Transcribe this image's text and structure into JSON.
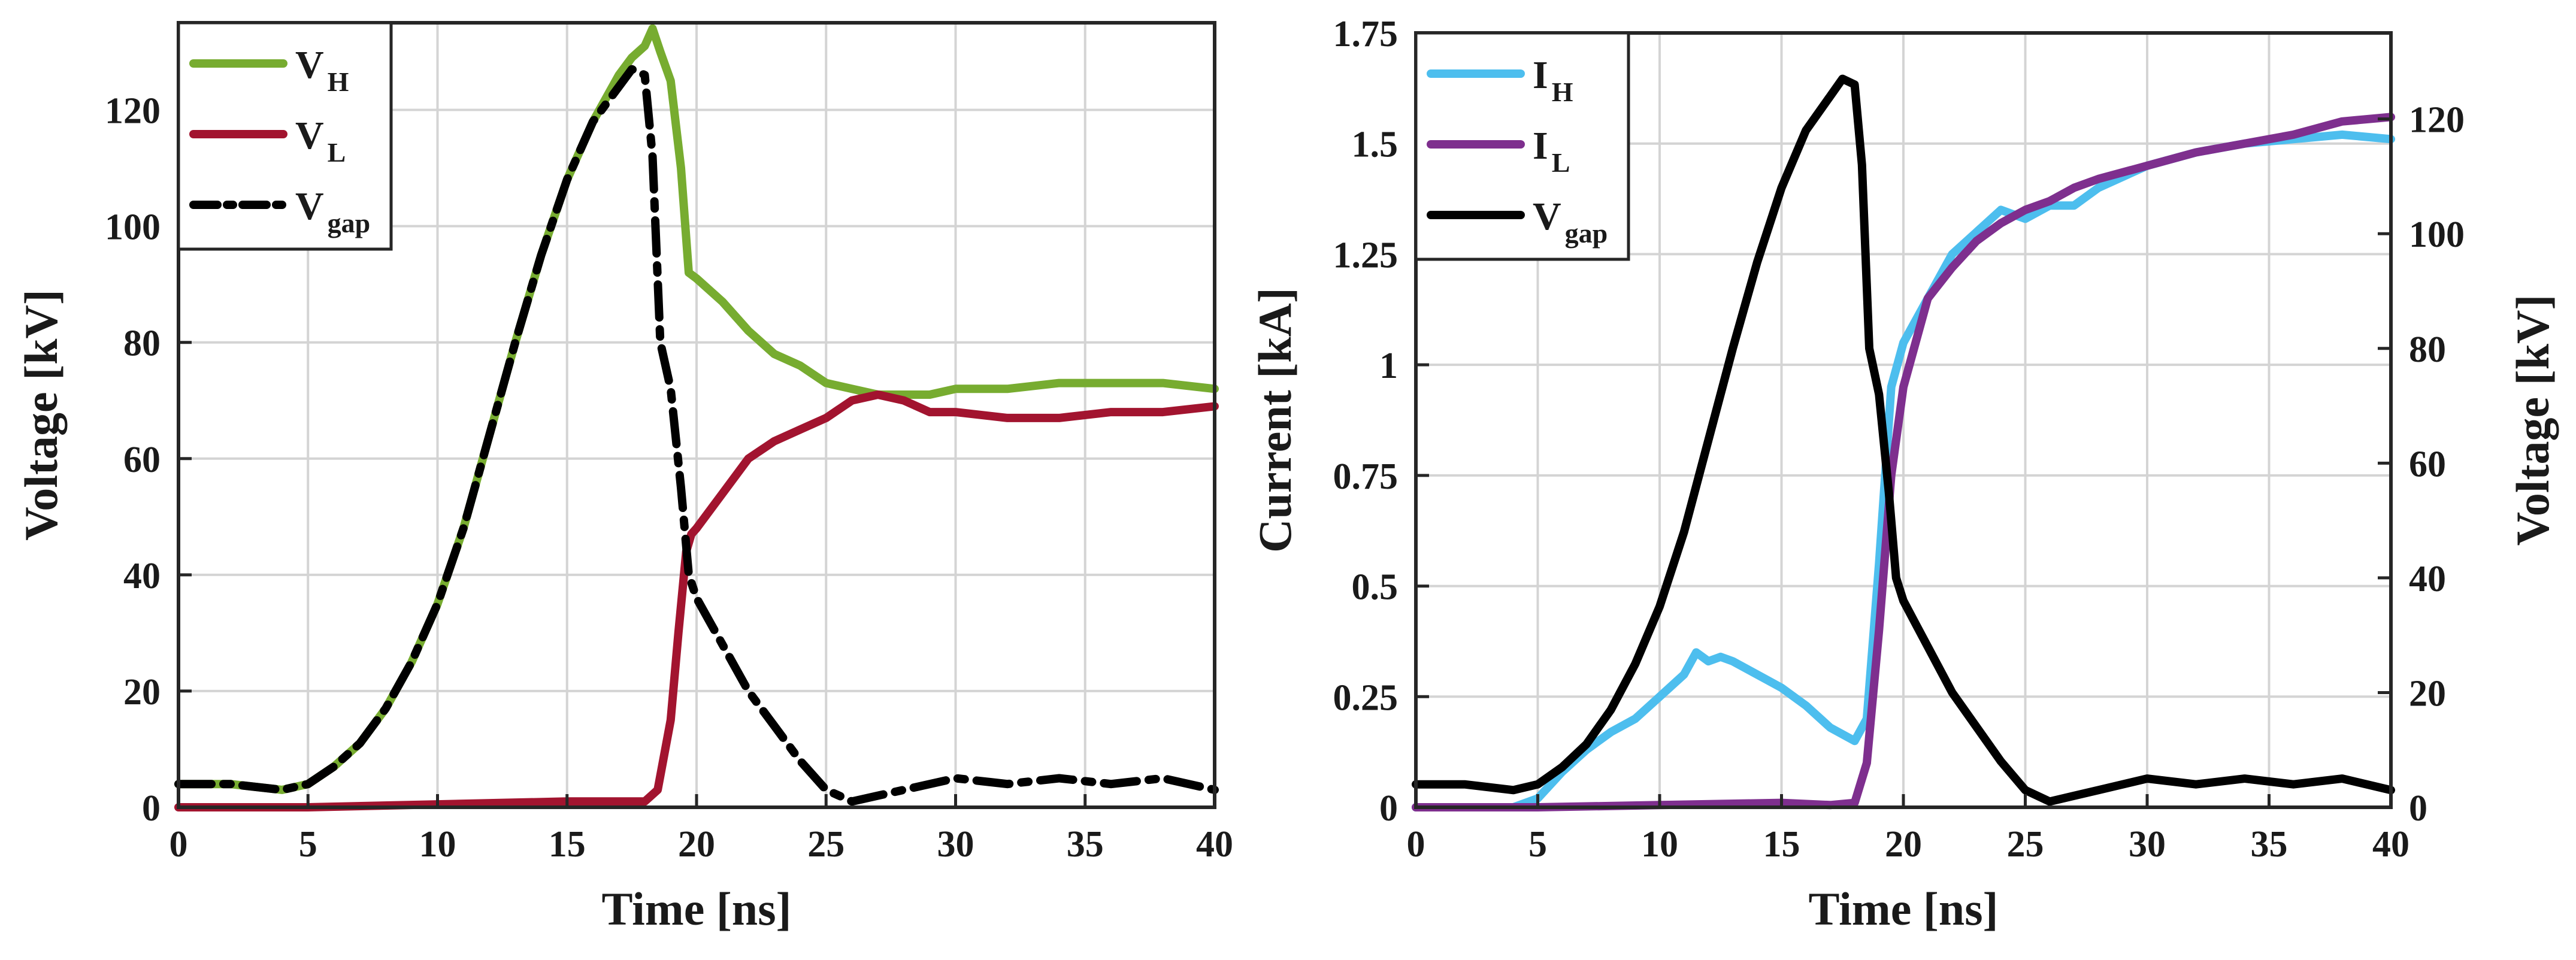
{
  "colors": {
    "green": "#77ac30",
    "red": "#a2142f",
    "black": "#000000",
    "cyan": "#4dbeee",
    "purple": "#7e2f8e"
  },
  "chart_data": [
    {
      "type": "line",
      "id": "left",
      "xlabel": "Time [ns]",
      "ylabel": "Voltage [kV]",
      "xlim": [
        0,
        40
      ],
      "ylim": [
        0,
        135
      ],
      "xticks": [
        0,
        5,
        10,
        15,
        20,
        25,
        30,
        35,
        40
      ],
      "xtick_labels": [
        "0",
        "5",
        "10",
        "15",
        "20",
        "25",
        "30",
        "35",
        "40"
      ],
      "yticks": [
        0,
        20,
        40,
        60,
        80,
        100,
        120
      ],
      "ytick_labels": [
        "0",
        "20",
        "40",
        "60",
        "80",
        "100",
        "120"
      ],
      "grid": true,
      "legend_position": "top-left",
      "series": [
        {
          "name": "V_H",
          "label_main": "V",
          "label_sub": "H",
          "color": "#77ac30",
          "dash": "solid",
          "x": [
            0,
            2,
            4,
            5,
            6,
            7,
            8,
            9,
            10,
            11,
            12,
            13,
            14,
            15,
            16,
            17,
            17.5,
            18,
            18.3,
            18.6,
            19,
            19.4,
            19.7,
            20,
            21,
            22,
            23,
            24,
            25,
            26,
            27,
            28,
            29,
            30,
            32,
            34,
            36,
            38,
            40
          ],
          "y": [
            4,
            4,
            3,
            4,
            7,
            11,
            17,
            25,
            35,
            48,
            64,
            80,
            95,
            108,
            118,
            126,
            129,
            131,
            134,
            130,
            125,
            110,
            92,
            91,
            87,
            82,
            78,
            76,
            73,
            72,
            71,
            71,
            71,
            72,
            72,
            73,
            73,
            73,
            72
          ]
        },
        {
          "name": "V_L",
          "label_main": "V",
          "label_sub": "L",
          "color": "#a2142f",
          "dash": "solid",
          "x": [
            0,
            5,
            10,
            15,
            17,
            18,
            18.5,
            19,
            19.3,
            19.6,
            19.8,
            20,
            21,
            22,
            23,
            24,
            25,
            26,
            27,
            28,
            29,
            30,
            32,
            34,
            36,
            38,
            40
          ],
          "y": [
            0,
            0,
            0.5,
            1,
            1,
            1,
            3,
            15,
            30,
            44,
            47,
            48,
            54,
            60,
            63,
            65,
            67,
            70,
            71,
            70,
            68,
            68,
            67,
            67,
            68,
            68,
            69
          ]
        },
        {
          "name": "V_gap",
          "label_main": "V",
          "label_sub": "gap",
          "color": "#000000",
          "dash": "dashdot",
          "x": [
            0,
            2,
            4,
            5,
            6,
            7,
            8,
            9,
            10,
            11,
            12,
            13,
            14,
            15,
            16,
            17,
            17.5,
            18,
            18.3,
            18.6,
            19,
            19.4,
            19.7,
            20,
            20.5,
            21,
            22,
            23,
            24,
            25,
            26,
            27,
            28,
            30,
            32,
            34,
            36,
            38,
            40
          ],
          "y": [
            4,
            4,
            3,
            4,
            7,
            11,
            17,
            25,
            35,
            48,
            64,
            80,
            95,
            108,
            118,
            124,
            127,
            126,
            112,
            80,
            72,
            55,
            40,
            36,
            32,
            28,
            20,
            14,
            8,
            3,
            1,
            2,
            3,
            5,
            4,
            5,
            4,
            5,
            3
          ]
        }
      ]
    },
    {
      "type": "line",
      "id": "right",
      "xlabel": "Time [ns]",
      "ylabel_left": "Current [kA]",
      "ylabel_right": "Voltage [kV]",
      "xlim": [
        0,
        40
      ],
      "ylim_left": [
        0,
        1.75
      ],
      "ylim_right": [
        0,
        135
      ],
      "xticks": [
        0,
        5,
        10,
        15,
        20,
        25,
        30,
        35,
        40
      ],
      "xtick_labels": [
        "0",
        "5",
        "10",
        "15",
        "20",
        "25",
        "30",
        "35",
        "40"
      ],
      "yticks_left": [
        0,
        0.25,
        0.5,
        0.75,
        1,
        1.25,
        1.5,
        1.75
      ],
      "ytick_labels_left": [
        "0",
        "0.25",
        "0.5",
        "0.75",
        "1",
        "1.25",
        "1.5",
        "1.75"
      ],
      "yticks_right": [
        0,
        20,
        40,
        60,
        80,
        100,
        120
      ],
      "ytick_labels_right": [
        "0",
        "20",
        "40",
        "60",
        "80",
        "100",
        "120"
      ],
      "grid": true,
      "legend_position": "top-left",
      "series": [
        {
          "name": "I_H",
          "label_main": "I",
          "label_sub": "H",
          "color": "#4dbeee",
          "dash": "solid",
          "axis": "left",
          "x": [
            0,
            4,
            5,
            6,
            7,
            8,
            9,
            10,
            11,
            11.5,
            12,
            12.5,
            13,
            14,
            15,
            16,
            17,
            18,
            18.5,
            19,
            19.5,
            20,
            21,
            22,
            23,
            24,
            25,
            26,
            27,
            28,
            30,
            32,
            34,
            36,
            38,
            40
          ],
          "y": [
            0,
            0,
            0.02,
            0.08,
            0.13,
            0.17,
            0.2,
            0.25,
            0.3,
            0.35,
            0.33,
            0.34,
            0.33,
            0.3,
            0.27,
            0.23,
            0.18,
            0.15,
            0.2,
            0.55,
            0.95,
            1.05,
            1.15,
            1.25,
            1.3,
            1.35,
            1.33,
            1.36,
            1.36,
            1.4,
            1.45,
            1.48,
            1.5,
            1.51,
            1.52,
            1.51
          ]
        },
        {
          "name": "I_L",
          "label_main": "I",
          "label_sub": "L",
          "color": "#7e2f8e",
          "dash": "solid",
          "axis": "left",
          "x": [
            0,
            5,
            10,
            15,
            17,
            18,
            18.5,
            19,
            19.5,
            20,
            21,
            22,
            23,
            24,
            25,
            26,
            27,
            28,
            30,
            32,
            34,
            36,
            38,
            40
          ],
          "y": [
            0,
            0,
            0.005,
            0.01,
            0.005,
            0.01,
            0.1,
            0.4,
            0.75,
            0.95,
            1.15,
            1.22,
            1.28,
            1.32,
            1.35,
            1.37,
            1.4,
            1.42,
            1.45,
            1.48,
            1.5,
            1.52,
            1.55,
            1.56
          ]
        },
        {
          "name": "V_gap",
          "label_main": "V",
          "label_sub": "gap",
          "color": "#000000",
          "dash": "solid",
          "axis": "right",
          "x": [
            0,
            2,
            4,
            5,
            6,
            7,
            8,
            9,
            10,
            11,
            12,
            13,
            14,
            15,
            16,
            17,
            17.5,
            18,
            18.3,
            18.6,
            19,
            19.4,
            19.7,
            20,
            20.5,
            21,
            22,
            23,
            24,
            25,
            26,
            27,
            28,
            30,
            32,
            34,
            36,
            38,
            40
          ],
          "y": [
            4,
            4,
            3,
            4,
            7,
            11,
            17,
            25,
            35,
            48,
            64,
            80,
            95,
            108,
            118,
            124,
            127,
            126,
            112,
            80,
            72,
            55,
            40,
            36,
            32,
            28,
            20,
            14,
            8,
            3,
            1,
            2,
            3,
            5,
            4,
            5,
            4,
            5,
            3
          ]
        }
      ]
    }
  ]
}
